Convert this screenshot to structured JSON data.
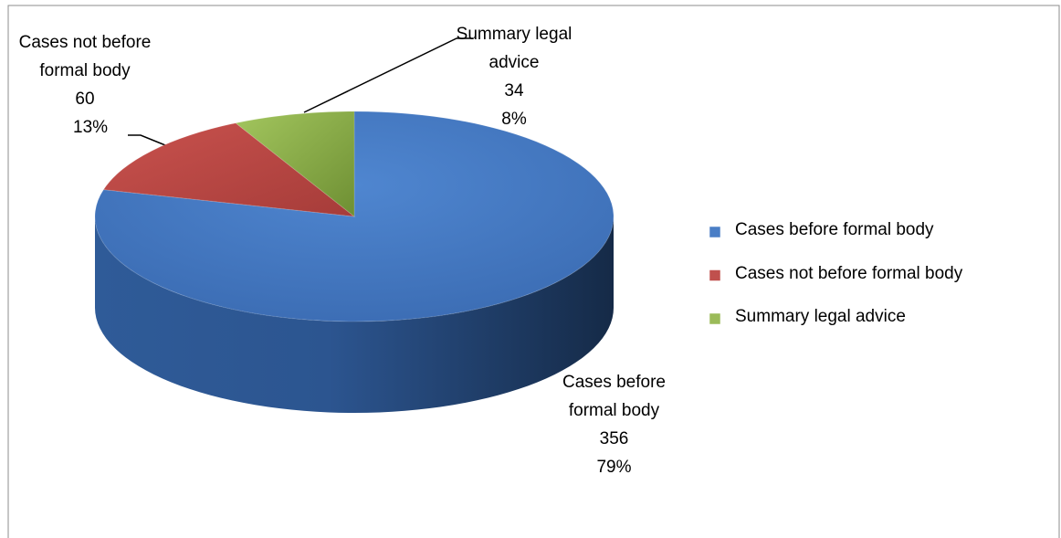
{
  "chart_data": {
    "type": "pie3d",
    "categories": [
      "Cases before formal body",
      "Cases not before formal body",
      "Summary legal advice"
    ],
    "values": [
      356,
      60,
      34
    ],
    "percents": [
      79,
      13,
      8
    ],
    "percent_labels": [
      "79%",
      "13%",
      "8%"
    ],
    "colors": [
      "#4a7ec6",
      "#c0504d",
      "#9bbb59"
    ],
    "legend": "right"
  }
}
